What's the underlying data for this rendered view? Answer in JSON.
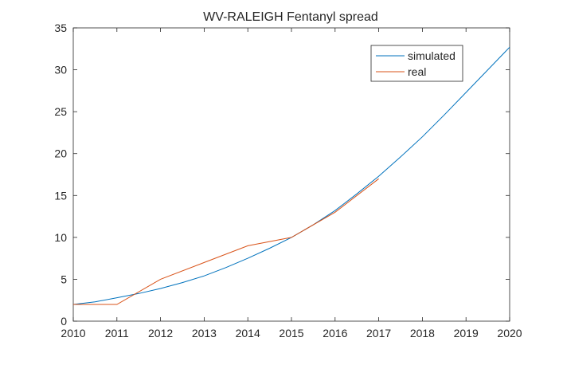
{
  "chart_data": {
    "type": "line",
    "title": "WV-RALEIGH Fentanyl spread",
    "xlabel": "",
    "ylabel": "",
    "xlim": [
      2010,
      2020
    ],
    "ylim": [
      0,
      35
    ],
    "xticks": [
      "2010",
      "2011",
      "2012",
      "2013",
      "2014",
      "2015",
      "2016",
      "2017",
      "2018",
      "2019",
      "2020"
    ],
    "yticks": [
      "0",
      "5",
      "10",
      "15",
      "20",
      "25",
      "30",
      "35"
    ],
    "grid": false,
    "legend_position": "top-right",
    "series": [
      {
        "name": "simulated",
        "color": "#0072BD",
        "x": [
          2010,
          2010.5,
          2011,
          2011.5,
          2012,
          2012.5,
          2013,
          2013.5,
          2014,
          2014.5,
          2015,
          2015.5,
          2016,
          2016.5,
          2017,
          2017.5,
          2018,
          2018.5,
          2019,
          2019.5,
          2020
        ],
        "y": [
          2.0,
          2.3,
          2.8,
          3.3,
          3.9,
          4.6,
          5.4,
          6.4,
          7.5,
          8.7,
          10.0,
          11.5,
          13.2,
          15.2,
          17.3,
          19.6,
          22.0,
          24.6,
          27.3,
          30.0,
          32.7
        ]
      },
      {
        "name": "real",
        "color": "#D95319",
        "x": [
          2010,
          2011,
          2012,
          2013,
          2014,
          2015,
          2016,
          2017
        ],
        "y": [
          2,
          2,
          5,
          7,
          9,
          10,
          13,
          17
        ]
      }
    ]
  }
}
